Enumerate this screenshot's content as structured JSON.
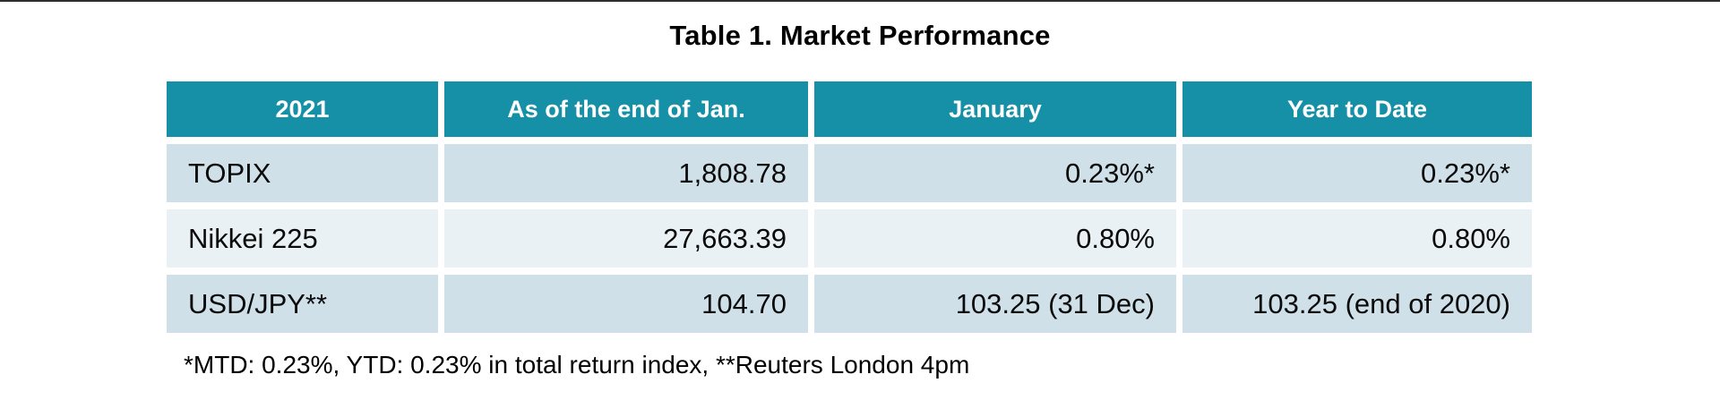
{
  "page": {
    "title": "Table 1. Market Performance",
    "footnote": "*MTD: 0.23%, YTD: 0.23% in total return index, **Reuters London 4pm"
  },
  "table": {
    "columns": [
      "2021",
      "As of the end of Jan.",
      "January",
      "Year to Date"
    ],
    "rows": [
      [
        "TOPIX",
        "1,808.78",
        "0.23%*",
        "0.23%*"
      ],
      [
        "Nikkei 225",
        "27,663.39",
        "0.80%",
        "0.80%"
      ],
      [
        "USD/JPY**",
        "104.70",
        "103.25 (31 Dec)",
        "103.25 (end of 2020)"
      ]
    ],
    "colors": {
      "header_bg": "#1690a6",
      "header_text": "#ffffff",
      "row_odd_bg": "#cfe0e9",
      "row_even_bg": "#e9f1f5",
      "body_text": "#0a0a0a"
    }
  },
  "chart_data": {
    "type": "table",
    "title": "Table 1. Market Performance",
    "columns": [
      "2021",
      "As of the end of Jan.",
      "January",
      "Year to Date"
    ],
    "rows": [
      {
        "instrument": "TOPIX",
        "as_of_end_of_jan": 1808.78,
        "january": "0.23%*",
        "year_to_date": "0.23%*"
      },
      {
        "instrument": "Nikkei 225",
        "as_of_end_of_jan": 27663.39,
        "january": "0.80%",
        "year_to_date": "0.80%"
      },
      {
        "instrument": "USD/JPY**",
        "as_of_end_of_jan": 104.7,
        "january": "103.25 (31 Dec)",
        "year_to_date": "103.25 (end of 2020)"
      }
    ],
    "footnote": "*MTD: 0.23%, YTD: 0.23% in total return index, **Reuters London 4pm"
  }
}
